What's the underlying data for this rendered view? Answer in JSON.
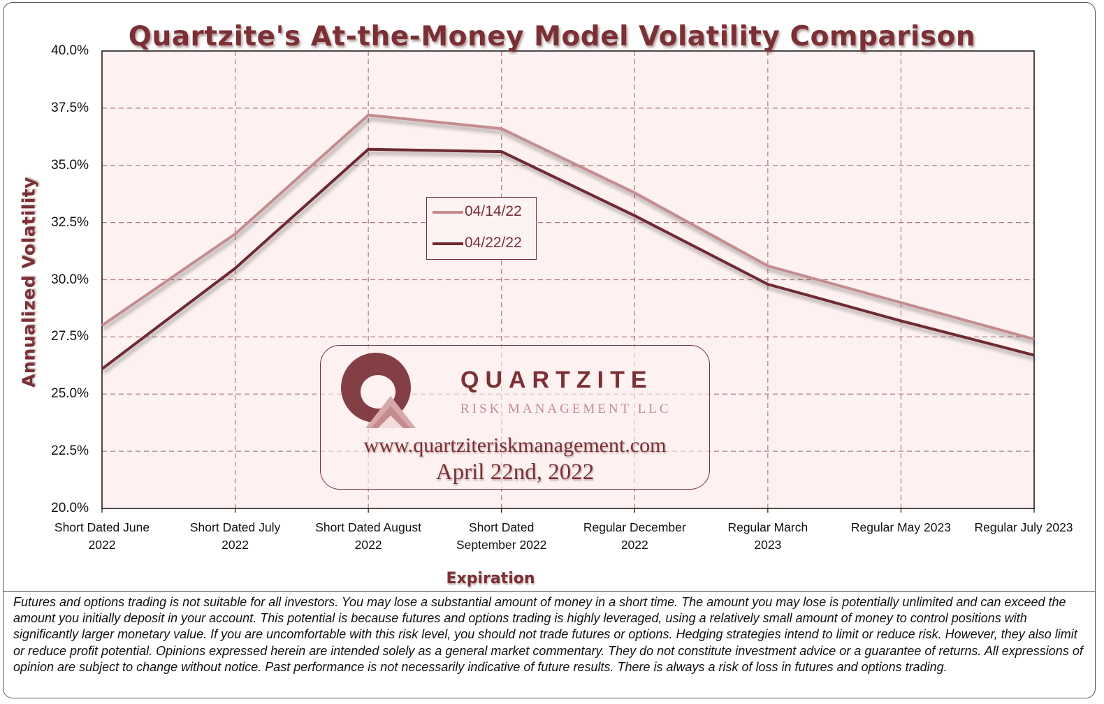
{
  "chart_data": {
    "type": "line",
    "title": "Quartzite's At-the-Money Model Volatility Comparison",
    "xlabel": "Expiration",
    "ylabel": "Annualized Volatility",
    "ylim": [
      20.0,
      40.0
    ],
    "y_ticks": [
      "20.0%",
      "22.5%",
      "25.0%",
      "27.5%",
      "30.0%",
      "32.5%",
      "35.0%",
      "37.5%",
      "40.0%"
    ],
    "categories": [
      [
        "Short Dated June",
        "2022"
      ],
      [
        "Short Dated July",
        "2022"
      ],
      [
        "Short Dated August",
        "2022"
      ],
      [
        "Short Dated",
        "September 2022"
      ],
      [
        "Regular December",
        "2022"
      ],
      [
        "Regular March",
        "2023"
      ],
      [
        "Regular May 2023"
      ],
      [
        "Regular July 2023"
      ]
    ],
    "grid": true,
    "legend_position": "center",
    "series": [
      {
        "name": "04/14/22",
        "color": "#c48c8f",
        "values": [
          28.0,
          32.0,
          37.2,
          36.6,
          33.8,
          30.6,
          29.0,
          27.4
        ]
      },
      {
        "name": "04/22/22",
        "color": "#6e2a30",
        "values": [
          26.1,
          30.5,
          35.7,
          35.6,
          32.8,
          29.8,
          28.2,
          26.7
        ]
      }
    ]
  },
  "logo": {
    "wordmark": "QUARTZITE",
    "subtitle": "RISK MANAGEMENT LLC",
    "url": "www.quartziteriskmanagement.com",
    "date": "April 22nd, 2022"
  },
  "disclaimer": "Futures and options trading is not suitable for all investors. You may lose a substantial amount of money in a short time.  The amount you may lose is potentially unlimited and can exceed the amount you initially deposit in your account. This potential is because futures and options trading is highly leveraged, using a relatively small amount of money to control positions with significantly larger monetary value. If you are uncomfortable with this risk level, you should not trade futures or options. Hedging strategies intend to limit or reduce risk. However, they also limit or reduce profit potential. Opinions expressed herein are intended solely as a general market commentary. They do not constitute investment advice or a guarantee of returns. All expressions of opinion are subject to change without notice. Past performance is not necessarily indicative of future results. There is always a risk of loss in futures and options trading.",
  "colors": {
    "accent": "#7a3035",
    "plot_bg": "#fdf1f1",
    "grid": "#b07a7e"
  }
}
